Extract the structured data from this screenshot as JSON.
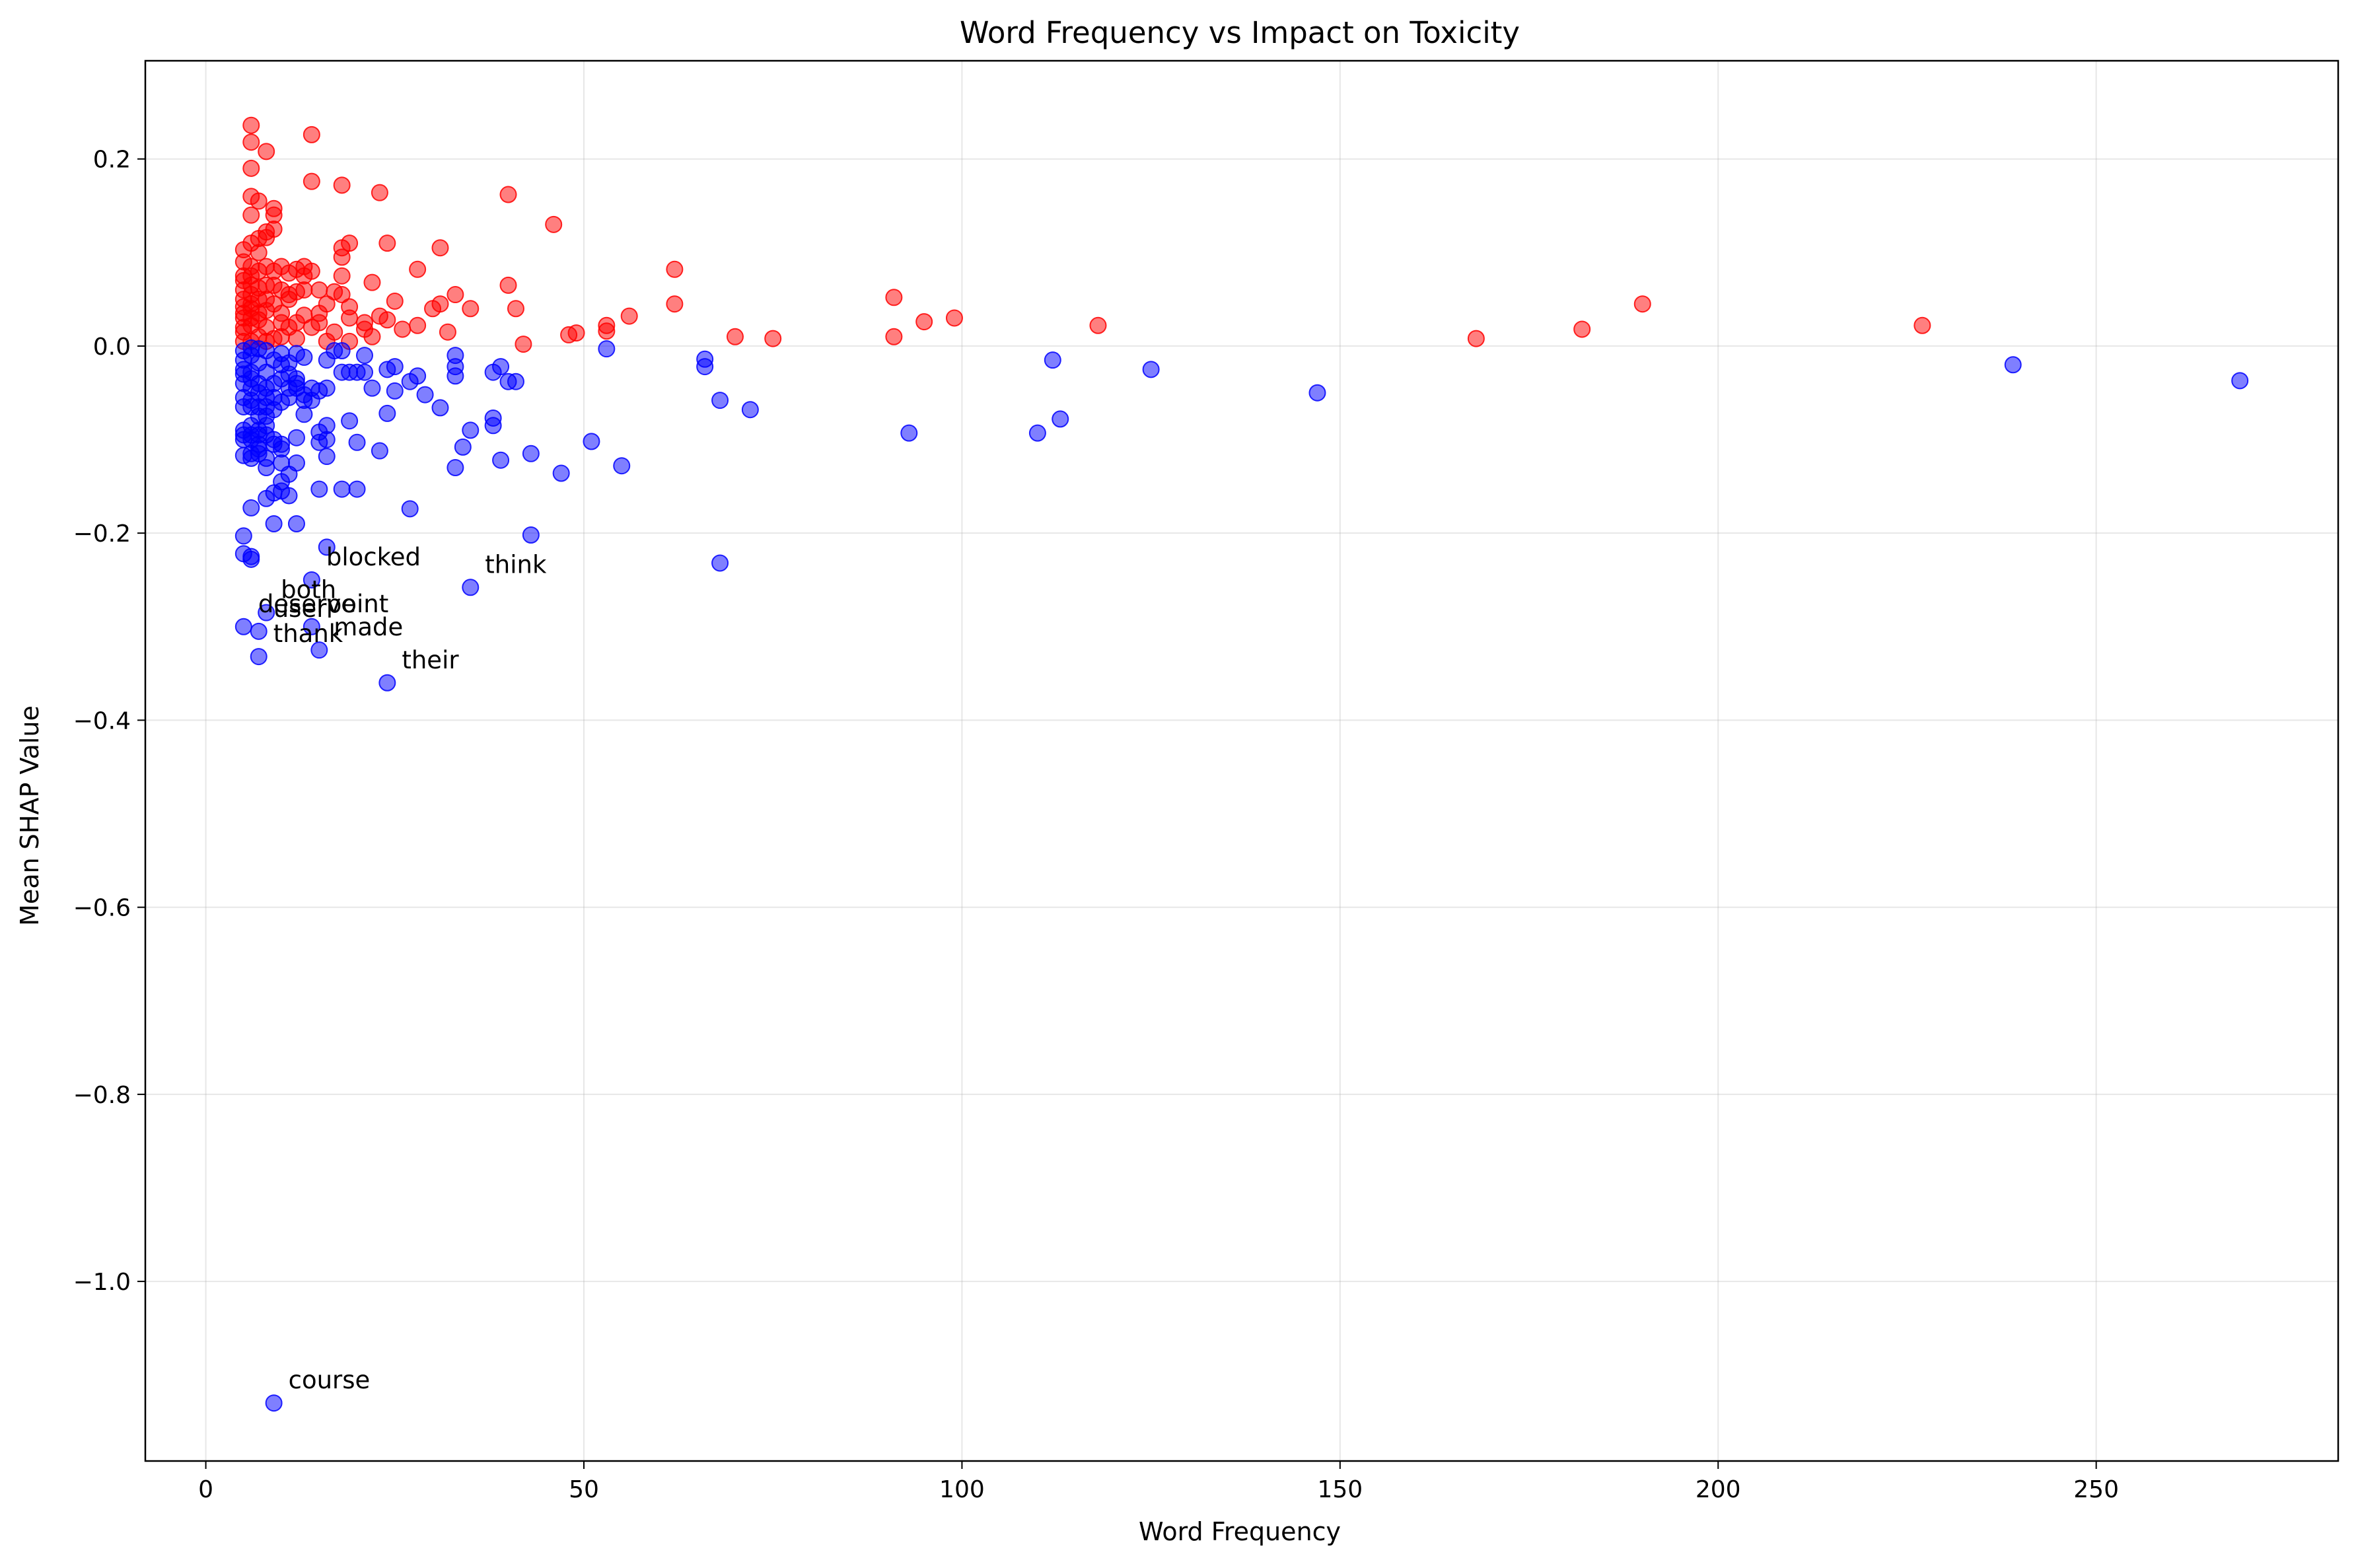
{
  "chart_data": {
    "type": "scatter",
    "title": "Word Frequency vs Impact on Toxicity",
    "xlabel": "Word Frequency",
    "ylabel": "Mean SHAP Value",
    "xlim": [
      -8,
      282
    ],
    "ylim": [
      -1.192,
      0.305
    ],
    "x_ticks": [
      0,
      50,
      100,
      150,
      200,
      250
    ],
    "x_tick_labels": [
      "0",
      "50",
      "100",
      "150",
      "200",
      "250"
    ],
    "y_ticks": [
      0.2,
      0.0,
      -0.2,
      -0.4,
      -0.6,
      -0.8,
      -1.0
    ],
    "y_tick_labels": [
      "0.2",
      "0.0",
      "−0.2",
      "−0.4",
      "−0.6",
      "−0.8",
      "−1.0"
    ],
    "grid": true,
    "legend": "none",
    "colors": {
      "positive": "#ff0000",
      "negative": "#0000ff"
    },
    "series": [
      {
        "color": "#ff0000",
        "points": [
          [
            6,
            0.236
          ],
          [
            6,
            0.218
          ],
          [
            8,
            0.208
          ],
          [
            6,
            0.19
          ],
          [
            14,
            0.226
          ],
          [
            14,
            0.176
          ],
          [
            18,
            0.172
          ],
          [
            23,
            0.164
          ],
          [
            40,
            0.162
          ],
          [
            46,
            0.13
          ],
          [
            6,
            0.16
          ],
          [
            7,
            0.155
          ],
          [
            9,
            0.147
          ],
          [
            9,
            0.14
          ],
          [
            6,
            0.14
          ],
          [
            9,
            0.125
          ],
          [
            8,
            0.122
          ],
          [
            8,
            0.116
          ],
          [
            7,
            0.115
          ],
          [
            6,
            0.11
          ],
          [
            5,
            0.103
          ],
          [
            7,
            0.1
          ],
          [
            24,
            0.11
          ],
          [
            31,
            0.105
          ],
          [
            19,
            0.11
          ],
          [
            18,
            0.105
          ],
          [
            18,
            0.095
          ],
          [
            13,
            0.085
          ],
          [
            12,
            0.082
          ],
          [
            10,
            0.085
          ],
          [
            14,
            0.08
          ],
          [
            28,
            0.082
          ],
          [
            62,
            0.082
          ],
          [
            6,
            0.085
          ],
          [
            5,
            0.09
          ],
          [
            8,
            0.085
          ],
          [
            9,
            0.08
          ],
          [
            11,
            0.078
          ],
          [
            13,
            0.075
          ],
          [
            18,
            0.075
          ],
          [
            5,
            0.075
          ],
          [
            22,
            0.068
          ],
          [
            40,
            0.065
          ],
          [
            5,
            0.07
          ],
          [
            6,
            0.065
          ],
          [
            7,
            0.062
          ],
          [
            10,
            0.06
          ],
          [
            12,
            0.058
          ],
          [
            15,
            0.06
          ],
          [
            17,
            0.058
          ],
          [
            18,
            0.055
          ],
          [
            33,
            0.055
          ],
          [
            91,
            0.052
          ],
          [
            190,
            0.045
          ],
          [
            62,
            0.045
          ],
          [
            25,
            0.048
          ],
          [
            31,
            0.045
          ],
          [
            30,
            0.04
          ],
          [
            35,
            0.04
          ],
          [
            41,
            0.04
          ],
          [
            19,
            0.042
          ],
          [
            16,
            0.045
          ],
          [
            11,
            0.05
          ],
          [
            8,
            0.05
          ],
          [
            6,
            0.055
          ],
          [
            5,
            0.05
          ],
          [
            5,
            0.042
          ],
          [
            6,
            0.04
          ],
          [
            8,
            0.038
          ],
          [
            10,
            0.035
          ],
          [
            13,
            0.033
          ],
          [
            15,
            0.035
          ],
          [
            19,
            0.03
          ],
          [
            23,
            0.032
          ],
          [
            24,
            0.028
          ],
          [
            28,
            0.022
          ],
          [
            21,
            0.025
          ],
          [
            15,
            0.025
          ],
          [
            12,
            0.025
          ],
          [
            10,
            0.025
          ],
          [
            7,
            0.028
          ],
          [
            5,
            0.03
          ],
          [
            6,
            0.022
          ],
          [
            8,
            0.02
          ],
          [
            11,
            0.02
          ],
          [
            14,
            0.02
          ],
          [
            17,
            0.015
          ],
          [
            21,
            0.018
          ],
          [
            26,
            0.018
          ],
          [
            32,
            0.015
          ],
          [
            48,
            0.012
          ],
          [
            49,
            0.014
          ],
          [
            53,
            0.022
          ],
          [
            53,
            0.016
          ],
          [
            56,
            0.032
          ],
          [
            95,
            0.026
          ],
          [
            99,
            0.03
          ],
          [
            118,
            0.022
          ],
          [
            227,
            0.022
          ],
          [
            182,
            0.018
          ],
          [
            70,
            0.01
          ],
          [
            75,
            0.008
          ],
          [
            91,
            0.01
          ],
          [
            168,
            0.008
          ],
          [
            42,
            0.002
          ],
          [
            5,
            0.015
          ],
          [
            7,
            0.01
          ],
          [
            9,
            0.008
          ],
          [
            12,
            0.008
          ],
          [
            16,
            0.005
          ],
          [
            19,
            0.005
          ],
          [
            22,
            0.01
          ],
          [
            5,
            0.005
          ],
          [
            6,
            0.005
          ],
          [
            8,
            0.005
          ],
          [
            10,
            0.01
          ],
          [
            5,
            0.06
          ],
          [
            6,
            0.075
          ],
          [
            7,
            0.08
          ],
          [
            9,
            0.065
          ],
          [
            11,
            0.055
          ],
          [
            13,
            0.06
          ],
          [
            5,
            0.02
          ],
          [
            6,
            0.03
          ],
          [
            7,
            0.035
          ],
          [
            9,
            0.045
          ],
          [
            5,
            0.035
          ],
          [
            6,
            0.045
          ],
          [
            7,
            0.05
          ],
          [
            8,
            0.065
          ]
        ]
      },
      {
        "color": "#0000ff",
        "points": [
          [
            9,
            -1.13
          ],
          [
            24,
            -0.36
          ],
          [
            7,
            -0.332
          ],
          [
            15,
            -0.325
          ],
          [
            7,
            -0.305
          ],
          [
            14,
            -0.3
          ],
          [
            5,
            -0.3
          ],
          [
            8,
            -0.285
          ],
          [
            35,
            -0.258
          ],
          [
            14,
            -0.25
          ],
          [
            68,
            -0.232
          ],
          [
            6,
            -0.228
          ],
          [
            6,
            -0.225
          ],
          [
            5,
            -0.222
          ],
          [
            16,
            -0.215
          ],
          [
            5,
            -0.203
          ],
          [
            43,
            -0.202
          ],
          [
            9,
            -0.19
          ],
          [
            12,
            -0.19
          ],
          [
            27,
            -0.174
          ],
          [
            6,
            -0.173
          ],
          [
            8,
            -0.163
          ],
          [
            11,
            -0.16
          ],
          [
            9,
            -0.157
          ],
          [
            10,
            -0.155
          ],
          [
            15,
            -0.153
          ],
          [
            18,
            -0.153
          ],
          [
            20,
            -0.153
          ],
          [
            10,
            -0.145
          ],
          [
            11,
            -0.137
          ],
          [
            55,
            -0.128
          ],
          [
            33,
            -0.13
          ],
          [
            47,
            -0.136
          ],
          [
            8,
            -0.13
          ],
          [
            12,
            -0.125
          ],
          [
            10,
            -0.125
          ],
          [
            16,
            -0.118
          ],
          [
            5,
            -0.117
          ],
          [
            6,
            -0.115
          ],
          [
            7,
            -0.115
          ],
          [
            23,
            -0.112
          ],
          [
            43,
            -0.115
          ],
          [
            39,
            -0.122
          ],
          [
            51,
            -0.102
          ],
          [
            20,
            -0.103
          ],
          [
            15,
            -0.103
          ],
          [
            16,
            -0.1
          ],
          [
            12,
            -0.098
          ],
          [
            9,
            -0.1
          ],
          [
            10,
            -0.105
          ],
          [
            5,
            -0.1
          ],
          [
            6,
            -0.095
          ],
          [
            7,
            -0.095
          ],
          [
            5,
            -0.09
          ],
          [
            15,
            -0.092
          ],
          [
            35,
            -0.09
          ],
          [
            34,
            -0.108
          ],
          [
            93,
            -0.093
          ],
          [
            110,
            -0.093
          ],
          [
            113,
            -0.078
          ],
          [
            38,
            -0.085
          ],
          [
            38,
            -0.077
          ],
          [
            16,
            -0.085
          ],
          [
            19,
            -0.08
          ],
          [
            13,
            -0.073
          ],
          [
            24,
            -0.072
          ],
          [
            31,
            -0.066
          ],
          [
            72,
            -0.068
          ],
          [
            5,
            -0.065
          ],
          [
            6,
            -0.065
          ],
          [
            8,
            -0.065
          ],
          [
            9,
            -0.068
          ],
          [
            10,
            -0.06
          ],
          [
            13,
            -0.058
          ],
          [
            68,
            -0.058
          ],
          [
            147,
            -0.05
          ],
          [
            29,
            -0.052
          ],
          [
            25,
            -0.048
          ],
          [
            22,
            -0.045
          ],
          [
            16,
            -0.045
          ],
          [
            15,
            -0.048
          ],
          [
            12,
            -0.045
          ],
          [
            11,
            -0.045
          ],
          [
            8,
            -0.045
          ],
          [
            6,
            -0.045
          ],
          [
            5,
            -0.04
          ],
          [
            7,
            -0.04
          ],
          [
            9,
            -0.04
          ],
          [
            10,
            -0.035
          ],
          [
            12,
            -0.035
          ],
          [
            27,
            -0.038
          ],
          [
            28,
            -0.032
          ],
          [
            33,
            -0.032
          ],
          [
            40,
            -0.038
          ],
          [
            41,
            -0.038
          ],
          [
            269,
            -0.037
          ],
          [
            5,
            -0.03
          ],
          [
            6,
            -0.028
          ],
          [
            8,
            -0.028
          ],
          [
            11,
            -0.03
          ],
          [
            18,
            -0.028
          ],
          [
            19,
            -0.028
          ],
          [
            20,
            -0.028
          ],
          [
            21,
            -0.028
          ],
          [
            24,
            -0.025
          ],
          [
            25,
            -0.022
          ],
          [
            33,
            -0.022
          ],
          [
            38,
            -0.028
          ],
          [
            39,
            -0.022
          ],
          [
            66,
            -0.022
          ],
          [
            125,
            -0.025
          ],
          [
            239,
            -0.02
          ],
          [
            66,
            -0.014
          ],
          [
            112,
            -0.015
          ],
          [
            16,
            -0.015
          ],
          [
            13,
            -0.012
          ],
          [
            9,
            -0.015
          ],
          [
            7,
            -0.018
          ],
          [
            5,
            -0.015
          ],
          [
            6,
            -0.01
          ],
          [
            33,
            -0.01
          ],
          [
            21,
            -0.01
          ],
          [
            17,
            -0.005
          ],
          [
            18,
            -0.005
          ],
          [
            53,
            -0.003
          ],
          [
            8,
            -0.005
          ],
          [
            10,
            -0.008
          ],
          [
            5,
            -0.005
          ],
          [
            6,
            -0.002
          ],
          [
            7,
            -0.003
          ],
          [
            5,
            -0.055
          ],
          [
            6,
            -0.058
          ],
          [
            7,
            -0.075
          ],
          [
            8,
            -0.085
          ],
          [
            9,
            -0.105
          ],
          [
            10,
            -0.11
          ],
          [
            7,
            -0.11
          ],
          [
            8,
            -0.12
          ],
          [
            6,
            -0.12
          ],
          [
            5,
            -0.025
          ],
          [
            6,
            -0.035
          ],
          [
            7,
            -0.05
          ],
          [
            8,
            -0.055
          ],
          [
            9,
            -0.055
          ],
          [
            11,
            -0.055
          ],
          [
            12,
            -0.04
          ],
          [
            14,
            -0.045
          ],
          [
            13,
            -0.052
          ],
          [
            14,
            -0.058
          ],
          [
            11,
            -0.018
          ],
          [
            12,
            -0.008
          ],
          [
            10,
            -0.02
          ],
          [
            7,
            -0.065
          ],
          [
            8,
            -0.075
          ],
          [
            6,
            -0.085
          ],
          [
            7,
            -0.09
          ],
          [
            8,
            -0.095
          ],
          [
            6,
            -0.1
          ],
          [
            7,
            -0.105
          ],
          [
            5,
            -0.095
          ]
        ]
      }
    ],
    "annotations": [
      {
        "text": "course",
        "x": 9,
        "y": -1.13
      },
      {
        "text": "their",
        "x": 24,
        "y": -0.36
      },
      {
        "text": "thank",
        "x": 7,
        "y": -0.332
      },
      {
        "text": "made",
        "x": 15,
        "y": -0.325
      },
      {
        "text": "user",
        "x": 7,
        "y": -0.305
      },
      {
        "text": "point",
        "x": 14,
        "y": -0.3
      },
      {
        "text": "deserve",
        "x": 5,
        "y": -0.3
      },
      {
        "text": "both",
        "x": 8,
        "y": -0.285
      },
      {
        "text": "think",
        "x": 35,
        "y": -0.258
      },
      {
        "text": "blocked",
        "x": 14,
        "y": -0.25
      }
    ]
  }
}
